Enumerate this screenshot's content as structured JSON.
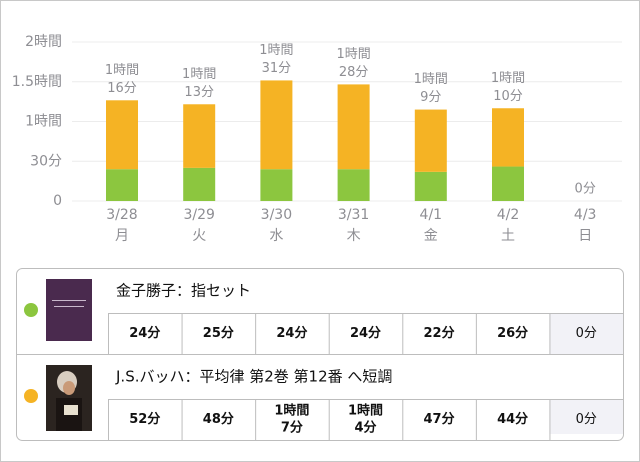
{
  "chart_data": {
    "type": "stacked_bar",
    "categories": [
      "3/28",
      "3/29",
      "3/30",
      "3/31",
      "4/1",
      "4/2",
      "4/3"
    ],
    "weekdays": [
      "月",
      "火",
      "水",
      "木",
      "金",
      "土",
      "日"
    ],
    "ylim": [
      0,
      120
    ],
    "yticks": [
      0,
      {
        "value": 30,
        "label": "30分"
      },
      {
        "value": 60,
        "label": "1時間"
      },
      {
        "value": 90,
        "label": "1.5時間"
      },
      {
        "value": 120,
        "label": "2時間"
      }
    ],
    "grid": true,
    "series": [
      {
        "name": "金子勝子：指セット",
        "color": "#8cc63f",
        "values": [
          24,
          25,
          24,
          24,
          22,
          26,
          0
        ],
        "value_labels": [
          [
            "24分"
          ],
          [
            "25分"
          ],
          [
            "24分"
          ],
          [
            "24分"
          ],
          [
            "22分"
          ],
          [
            "26分"
          ],
          [
            "0分"
          ]
        ]
      },
      {
        "name": "J.S.バッハ：平均律 第2巻 第12番 へ短調",
        "color": "#f5b324",
        "values": [
          52,
          48,
          67,
          64,
          47,
          44,
          0
        ],
        "value_labels": [
          [
            "52分"
          ],
          [
            "48分"
          ],
          [
            "1時間",
            "7分"
          ],
          [
            "1時間",
            "4分"
          ],
          [
            "47分"
          ],
          [
            "44分"
          ],
          [
            "0分"
          ]
        ]
      }
    ],
    "totals": [
      76,
      73,
      91,
      88,
      69,
      70,
      0
    ],
    "total_labels": [
      [
        "1時間",
        "16分"
      ],
      [
        "1時間",
        "13分"
      ],
      [
        "1時間",
        "31分"
      ],
      [
        "1時間",
        "28分"
      ],
      [
        "1時間",
        "9分"
      ],
      [
        "1時間",
        "10分"
      ],
      [
        "0分"
      ]
    ]
  }
}
